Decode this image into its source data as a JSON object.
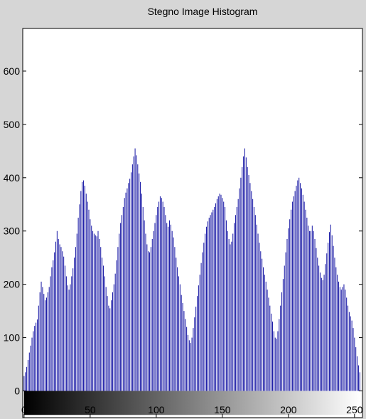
{
  "chart_data": {
    "type": "bar",
    "title": "Stegno Image Histogram",
    "xlabel": "",
    "ylabel": "",
    "xlim": [
      -1,
      256
    ],
    "ylim": [
      -50,
      680
    ],
    "xticks": [
      0,
      50,
      100,
      150,
      200,
      250
    ],
    "yticks": [
      0,
      100,
      200,
      300,
      400,
      500,
      600
    ],
    "bar_color": "#1a1aa6",
    "grid": false,
    "colorbar": "grayscale gradient from black (0) to white (255) below the axis",
    "x": "intensity levels 0 to 255",
    "values": [
      28,
      35,
      45,
      58,
      72,
      85,
      100,
      112,
      122,
      128,
      134,
      160,
      185,
      205,
      195,
      182,
      170,
      175,
      185,
      195,
      215,
      232,
      245,
      260,
      280,
      300,
      285,
      275,
      270,
      262,
      252,
      235,
      215,
      198,
      190,
      200,
      215,
      230,
      250,
      270,
      295,
      325,
      350,
      375,
      392,
      395,
      385,
      370,
      355,
      340,
      322,
      310,
      300,
      295,
      292,
      290,
      300,
      285,
      270,
      250,
      235,
      215,
      195,
      178,
      160,
      155,
      170,
      185,
      200,
      220,
      245,
      270,
      295,
      315,
      330,
      345,
      362,
      372,
      380,
      390,
      398,
      410,
      425,
      440,
      455,
      442,
      425,
      408,
      392,
      370,
      345,
      320,
      295,
      275,
      262,
      260,
      270,
      285,
      300,
      315,
      330,
      345,
      355,
      365,
      362,
      355,
      345,
      330,
      315,
      308,
      320,
      312,
      300,
      288,
      270,
      250,
      232,
      215,
      200,
      180,
      165,
      150,
      135,
      120,
      105,
      95,
      90,
      100,
      118,
      138,
      158,
      178,
      198,
      218,
      240,
      260,
      278,
      295,
      308,
      318,
      325,
      330,
      335,
      340,
      345,
      352,
      360,
      365,
      370,
      368,
      362,
      355,
      345,
      320,
      300,
      285,
      275,
      280,
      295,
      315,
      330,
      345,
      360,
      380,
      400,
      420,
      440,
      455,
      438,
      420,
      405,
      390,
      375,
      360,
      345,
      330,
      312,
      295,
      278,
      262,
      248,
      232,
      218,
      205,
      190,
      175,
      160,
      145,
      130,
      112,
      100,
      98,
      112,
      135,
      160,
      185,
      210,
      235,
      260,
      285,
      305,
      322,
      340,
      355,
      365,
      375,
      385,
      395,
      400,
      390,
      380,
      368,
      355,
      340,
      325,
      310,
      300,
      300,
      310,
      300,
      285,
      268,
      250,
      235,
      222,
      212,
      208,
      218,
      238,
      258,
      278,
      298,
      312,
      292,
      272,
      250,
      232,
      218,
      205,
      195,
      190,
      195,
      200,
      190,
      175,
      160,
      148,
      140,
      132,
      118,
      100,
      82,
      65,
      48,
      35
    ]
  }
}
